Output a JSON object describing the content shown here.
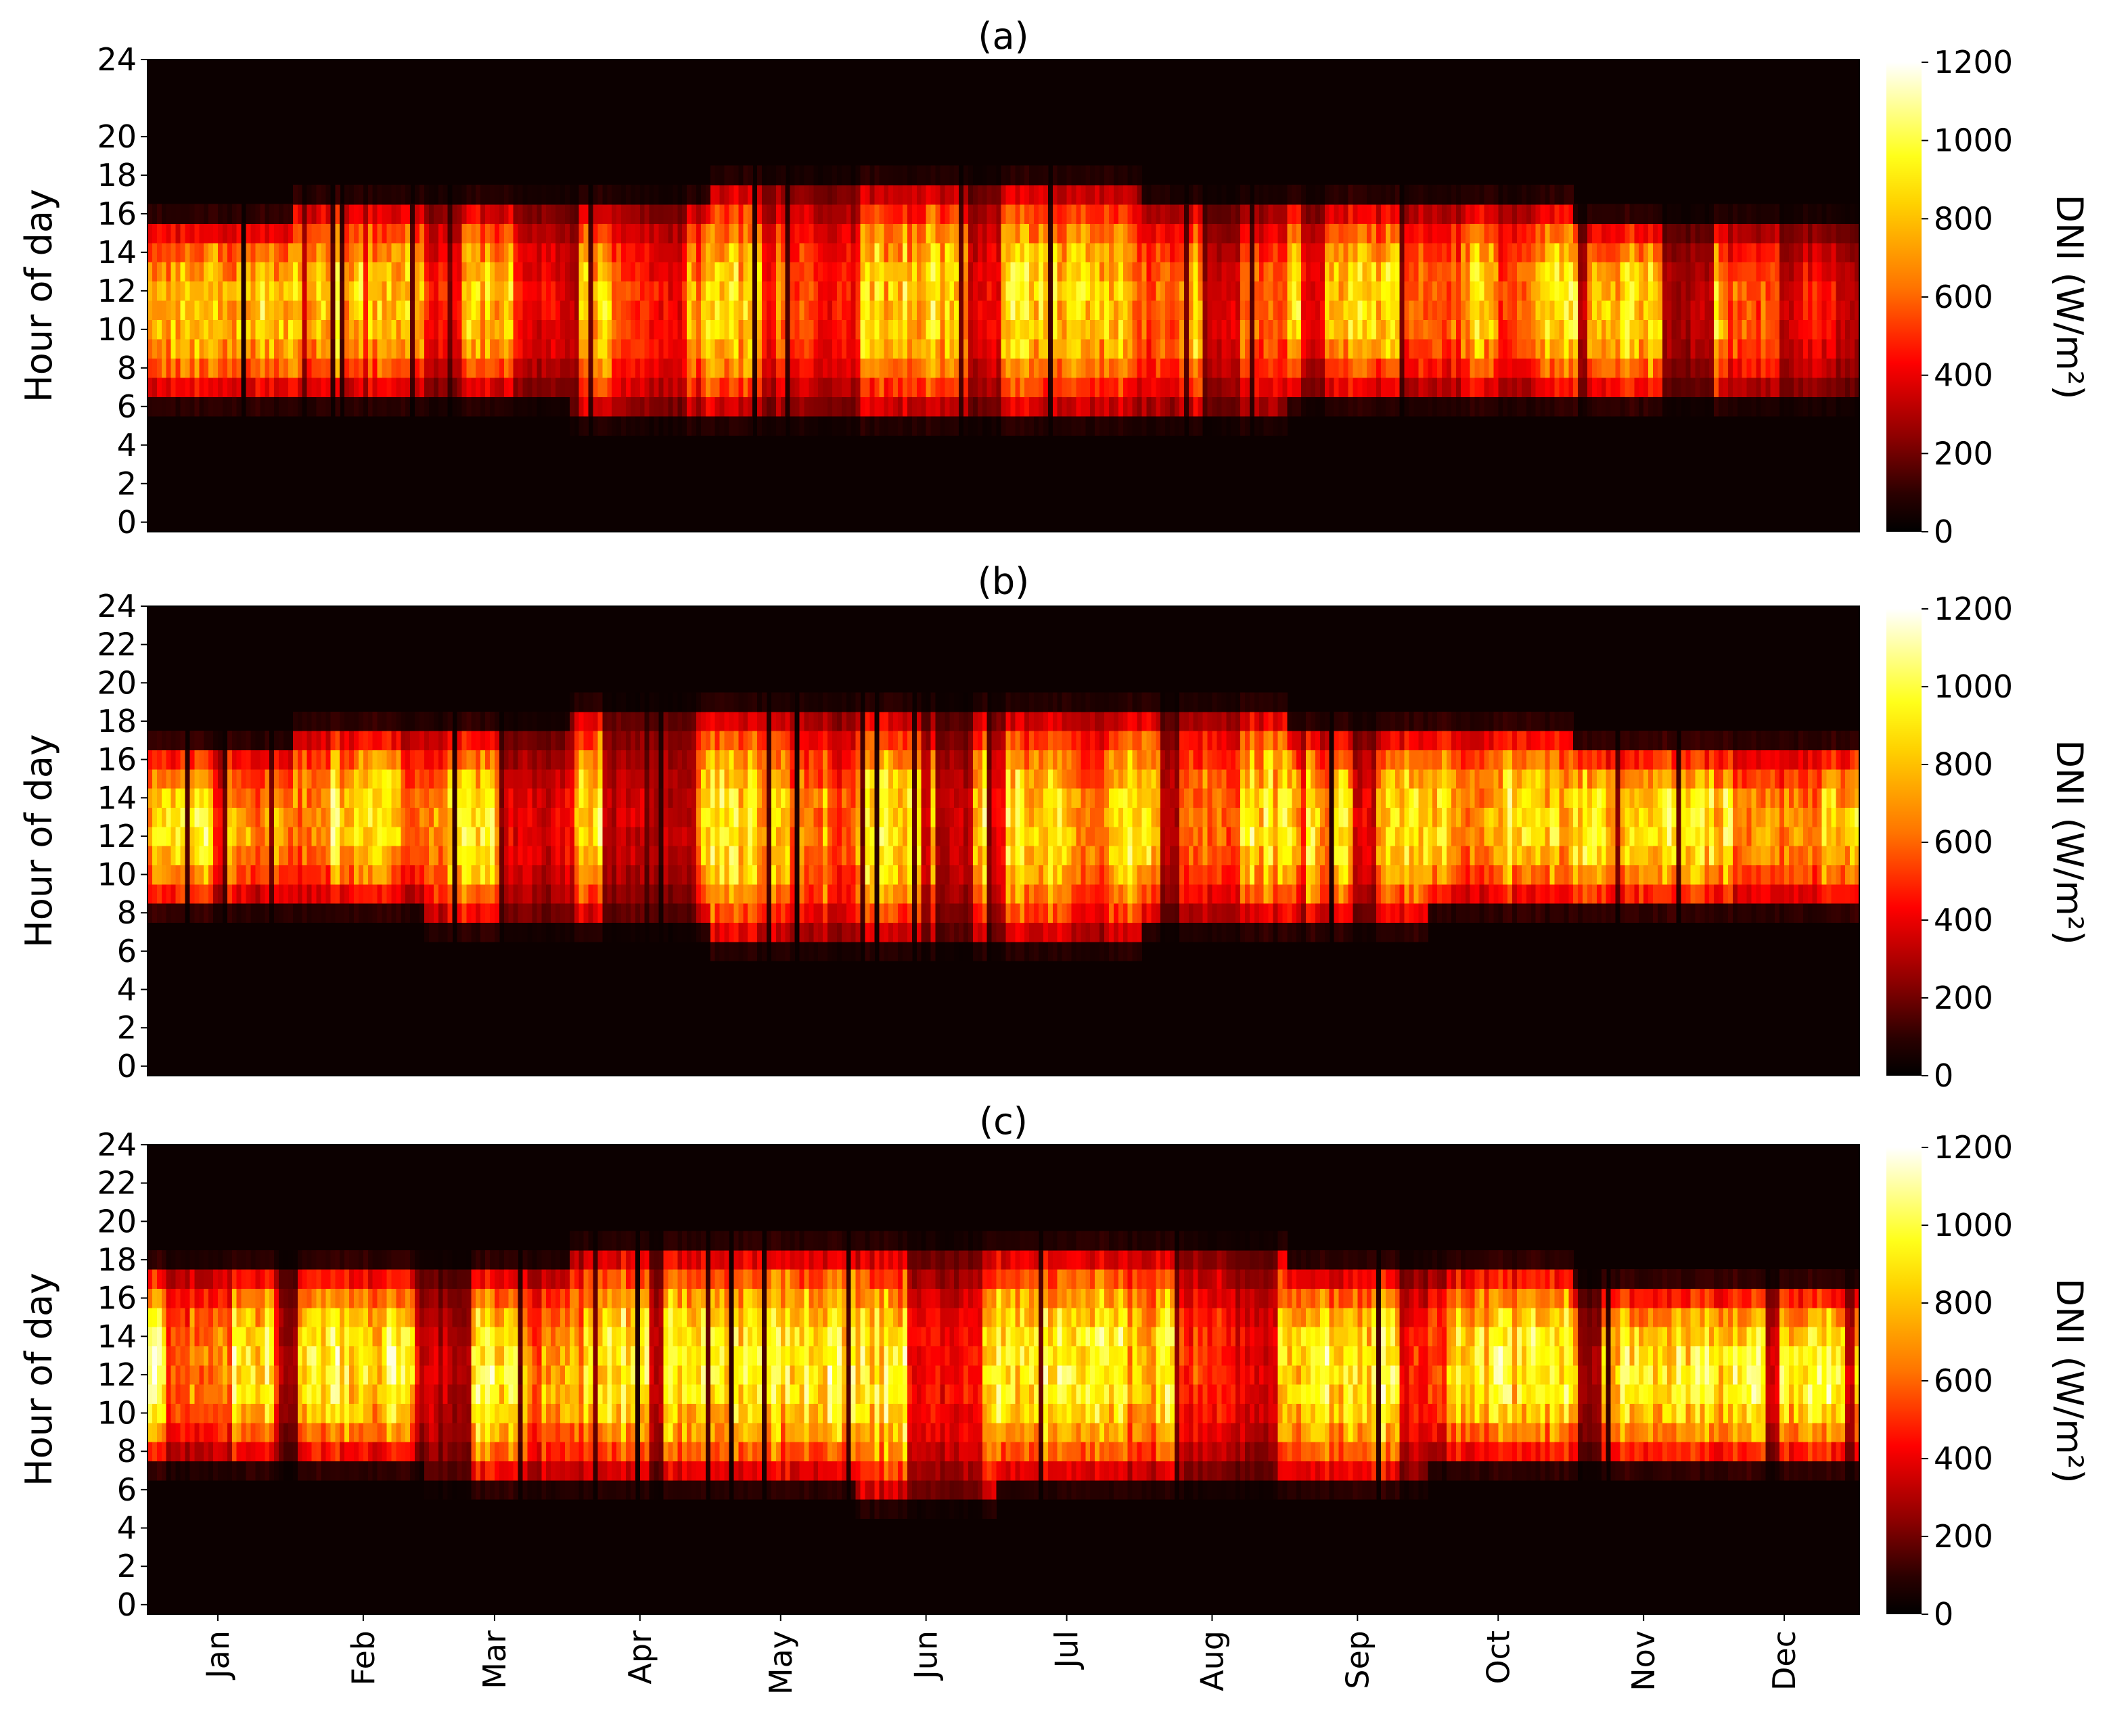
{
  "chart_data": [
    {
      "type": "heatmap",
      "title": "(a)",
      "ylabel": "Hour of day",
      "colorbar_label": "DNI (W/m²)",
      "colorbar_ticks": [
        "0",
        "200",
        "400",
        "600",
        "800",
        "1000",
        "1200"
      ],
      "vmin": 0,
      "vmax": 1200,
      "yticks": [
        "0",
        "2",
        "4",
        "6",
        "8",
        "10",
        "12",
        "14",
        "16",
        "18",
        "20",
        "24"
      ],
      "ytick_values": [
        0,
        2,
        4,
        6,
        8,
        10,
        12,
        14,
        16,
        18,
        20,
        24
      ],
      "xticks": [],
      "ylim": [
        -0.5,
        24
      ],
      "x_range": [
        0,
        365
      ],
      "day_hours_by_month": [
        {
          "month": "Jan",
          "start": 6,
          "end": 16
        },
        {
          "month": "Feb",
          "start": 6,
          "end": 17
        },
        {
          "month": "Mar",
          "start": 6,
          "end": 17
        },
        {
          "month": "Apr",
          "start": 5,
          "end": 17
        },
        {
          "month": "May",
          "start": 5,
          "end": 18
        },
        {
          "month": "Jun",
          "start": 5,
          "end": 18
        },
        {
          "month": "Jul",
          "start": 5,
          "end": 18
        },
        {
          "month": "Aug",
          "start": 5,
          "end": 17
        },
        {
          "month": "Sep",
          "start": 6,
          "end": 17
        },
        {
          "month": "Oct",
          "start": 6,
          "end": 17
        },
        {
          "month": "Nov",
          "start": 6,
          "end": 16
        },
        {
          "month": "Dec",
          "start": 6,
          "end": 16
        }
      ],
      "peak_dni": 950
    },
    {
      "type": "heatmap",
      "title": "(b)",
      "ylabel": "Hour of day",
      "colorbar_label": "DNI (W/m²)",
      "colorbar_ticks": [
        "0",
        "200",
        "400",
        "600",
        "800",
        "1000",
        "1200"
      ],
      "vmin": 0,
      "vmax": 1200,
      "yticks": [
        "0",
        "2",
        "4",
        "6",
        "8",
        "10",
        "12",
        "14",
        "16",
        "18",
        "20",
        "22",
        "24"
      ],
      "ytick_values": [
        0,
        2,
        4,
        6,
        8,
        10,
        12,
        14,
        16,
        18,
        20,
        22,
        24
      ],
      "xticks": [],
      "ylim": [
        -0.5,
        24
      ],
      "x_range": [
        0,
        365
      ],
      "day_hours_by_month": [
        {
          "month": "Jan",
          "start": 8,
          "end": 17
        },
        {
          "month": "Feb",
          "start": 8,
          "end": 18
        },
        {
          "month": "Mar",
          "start": 7,
          "end": 18
        },
        {
          "month": "Apr",
          "start": 7,
          "end": 19
        },
        {
          "month": "May",
          "start": 6,
          "end": 19
        },
        {
          "month": "Jun",
          "start": 6,
          "end": 19
        },
        {
          "month": "Jul",
          "start": 6,
          "end": 19
        },
        {
          "month": "Aug",
          "start": 7,
          "end": 19
        },
        {
          "month": "Sep",
          "start": 7,
          "end": 18
        },
        {
          "month": "Oct",
          "start": 8,
          "end": 18
        },
        {
          "month": "Nov",
          "start": 8,
          "end": 17
        },
        {
          "month": "Dec",
          "start": 8,
          "end": 17
        }
      ],
      "peak_dni": 1000
    },
    {
      "type": "heatmap",
      "title": "(c)",
      "ylabel": "Hour of day",
      "colorbar_label": "DNI (W/m²)",
      "colorbar_ticks": [
        "0",
        "200",
        "400",
        "600",
        "800",
        "1000",
        "1200"
      ],
      "vmin": 0,
      "vmax": 1200,
      "yticks": [
        "0",
        "2",
        "4",
        "6",
        "8",
        "10",
        "12",
        "14",
        "16",
        "18",
        "20",
        "22",
        "24"
      ],
      "ytick_values": [
        0,
        2,
        4,
        6,
        8,
        10,
        12,
        14,
        16,
        18,
        20,
        22,
        24
      ],
      "xticks": [
        "Jan",
        "Feb",
        "Mar",
        "Apr",
        "May",
        "Jun",
        "Jul",
        "Aug",
        "Sep",
        "Oct",
        "Nov",
        "Dec"
      ],
      "xtick_values": [
        15,
        46,
        74,
        105,
        135,
        166,
        196,
        227,
        258,
        288,
        319,
        349
      ],
      "ylim": [
        -0.5,
        24
      ],
      "x_range": [
        0,
        365
      ],
      "day_hours_by_month": [
        {
          "month": "Jan",
          "start": 7,
          "end": 18
        },
        {
          "month": "Feb",
          "start": 7,
          "end": 18
        },
        {
          "month": "Mar",
          "start": 6,
          "end": 18
        },
        {
          "month": "Apr",
          "start": 6,
          "end": 19
        },
        {
          "month": "May",
          "start": 6,
          "end": 19
        },
        {
          "month": "Jun",
          "start": 5,
          "end": 19
        },
        {
          "month": "Jul",
          "start": 6,
          "end": 19
        },
        {
          "month": "Aug",
          "start": 6,
          "end": 19
        },
        {
          "month": "Sep",
          "start": 6,
          "end": 18
        },
        {
          "month": "Oct",
          "start": 7,
          "end": 18
        },
        {
          "month": "Nov",
          "start": 7,
          "end": 17
        },
        {
          "month": "Dec",
          "start": 7,
          "end": 17
        }
      ],
      "peak_dni": 1050
    }
  ]
}
